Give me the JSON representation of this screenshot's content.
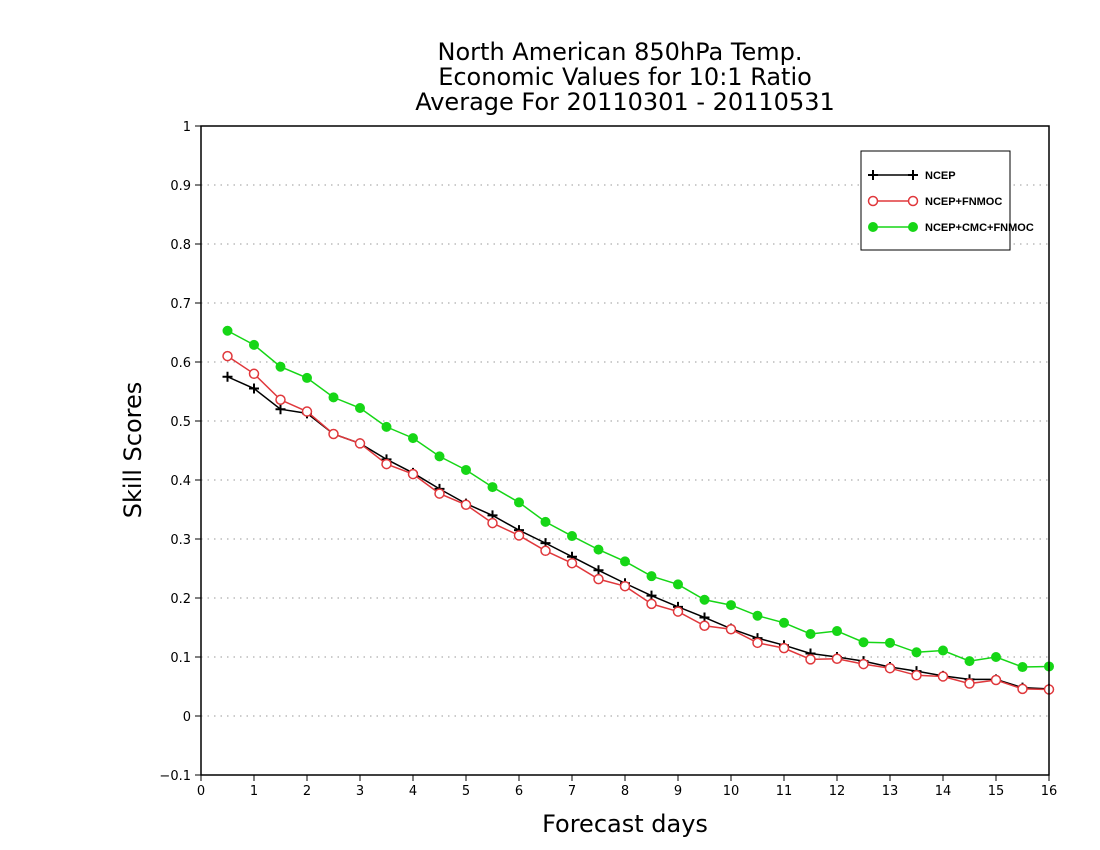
{
  "chart_data": {
    "type": "line",
    "title": [
      "North American 850hPa Temp.",
      "Economic Values for 10:1 Ratio",
      "Average For 20110301 - 20110531"
    ],
    "xlabel": "Forecast days",
    "ylabel": "Skill Scores",
    "xlim": [
      0,
      16
    ],
    "ylim": [
      -0.1,
      1
    ],
    "xticks": [
      0,
      1,
      2,
      3,
      4,
      5,
      6,
      7,
      8,
      9,
      10,
      11,
      12,
      13,
      14,
      15,
      16
    ],
    "yticks": [
      -0.1,
      0,
      0.1,
      0.2,
      0.3,
      0.4,
      0.5,
      0.6,
      0.7,
      0.8,
      0.9,
      1
    ],
    "ytick_labels": [
      "−0.1",
      "0",
      "0.1",
      "0.2",
      "0.3",
      "0.4",
      "0.5",
      "0.6",
      "0.7",
      "0.8",
      "0.9",
      "1"
    ],
    "grid": "horizontal dotted",
    "legend_position": "top-right",
    "x": [
      0.5,
      1.0,
      1.5,
      2.0,
      2.5,
      3.0,
      3.5,
      4.0,
      4.5,
      5.0,
      5.5,
      6.0,
      6.5,
      7.0,
      7.5,
      8.0,
      8.5,
      9.0,
      9.5,
      10.0,
      10.5,
      11.0,
      11.5,
      12.0,
      12.5,
      13.0,
      13.5,
      14.0,
      14.5,
      15.0,
      15.5,
      16.0
    ],
    "series": [
      {
        "name": "NCEP",
        "color": "#000000",
        "marker": "plus",
        "values": [
          0.575,
          0.555,
          0.52,
          0.513,
          0.478,
          0.462,
          0.435,
          0.412,
          0.385,
          0.36,
          0.34,
          0.315,
          0.293,
          0.27,
          0.247,
          0.225,
          0.204,
          0.185,
          0.167,
          0.148,
          0.132,
          0.12,
          0.106,
          0.1,
          0.093,
          0.083,
          0.076,
          0.068,
          0.062,
          0.062,
          0.048,
          0.046
        ]
      },
      {
        "name": "NCEP+FNMOC",
        "color": "#e0383c",
        "marker": "open-circle",
        "values": [
          0.61,
          0.58,
          0.536,
          0.516,
          0.478,
          0.462,
          0.427,
          0.41,
          0.377,
          0.358,
          0.327,
          0.306,
          0.28,
          0.259,
          0.232,
          0.22,
          0.19,
          0.177,
          0.153,
          0.147,
          0.124,
          0.115,
          0.096,
          0.097,
          0.088,
          0.081,
          0.069,
          0.067,
          0.055,
          0.061,
          0.046,
          0.045
        ]
      },
      {
        "name": "NCEP+CMC+FNMOC",
        "color": "#16d616",
        "marker": "filled-circle",
        "values": [
          0.653,
          0.629,
          0.592,
          0.573,
          0.54,
          0.522,
          0.49,
          0.471,
          0.44,
          0.417,
          0.388,
          0.362,
          0.329,
          0.305,
          0.282,
          0.262,
          0.237,
          0.223,
          0.197,
          0.188,
          0.17,
          0.158,
          0.139,
          0.144,
          0.125,
          0.124,
          0.108,
          0.111,
          0.093,
          0.1,
          0.083,
          0.084
        ]
      }
    ]
  }
}
